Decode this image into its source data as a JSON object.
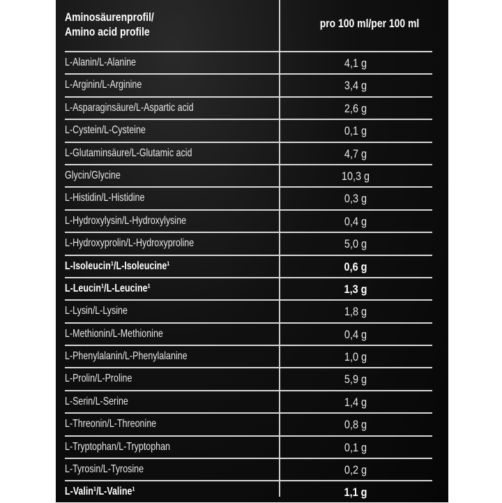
{
  "header": {
    "left_line1": "Aminosäurenprofil/",
    "left_line2": "Amino acid profile",
    "right": "pro 100 ml/per 100 ml"
  },
  "rows": [
    {
      "name": "L-Alanin/L-Alanine",
      "value": "4,1 g",
      "bold": false
    },
    {
      "name": "L-Arginin/L-Arginine",
      "value": "3,4 g",
      "bold": false
    },
    {
      "name": "L-Asparaginsäure/L-Aspartic acid",
      "value": "2,6 g",
      "bold": false
    },
    {
      "name": "L-Cystein/L-Cysteine",
      "value": "0,1 g",
      "bold": false
    },
    {
      "name": "L-Glutaminsäure/L-Glutamic acid",
      "value": "4,7 g",
      "bold": false
    },
    {
      "name": "Glycin/Glycine",
      "value": "10,3 g",
      "bold": false
    },
    {
      "name": "L-Histidin/L-Histidine",
      "value": "0,3 g",
      "bold": false
    },
    {
      "name": "L-Hydroxylysin/L-Hydroxylysine",
      "value": "0,4 g",
      "bold": false
    },
    {
      "name": "L-Hydroxyprolin/L-Hydroxyproline",
      "value": "5,0 g",
      "bold": false
    },
    {
      "name": "L-Isoleucin¹/L-Isoleucine¹",
      "value": "0,6 g",
      "bold": true
    },
    {
      "name": "L-Leucin¹/L-Leucine¹",
      "value": "1,3 g",
      "bold": true
    },
    {
      "name": "L-Lysin/L-Lysine",
      "value": "1,8 g",
      "bold": false
    },
    {
      "name": "L-Methionin/L-Methionine",
      "value": "0,4 g",
      "bold": false
    },
    {
      "name": "L-Phenylalanin/L-Phenylalanine",
      "value": "1,0 g",
      "bold": false
    },
    {
      "name": "L-Prolin/L-Proline",
      "value": "5,9 g",
      "bold": false
    },
    {
      "name": "L-Serin/L-Serine",
      "value": "1,4 g",
      "bold": false
    },
    {
      "name": "L-Threonin/L-Threonine",
      "value": "0,8 g",
      "bold": false
    },
    {
      "name": "L-Tryptophan/L-Tryptophan",
      "value": "0,1 g",
      "bold": false
    },
    {
      "name": "L-Tyrosin/L-Tyrosine",
      "value": "0,2 g",
      "bold": false
    },
    {
      "name": "L-Valin¹/L-Valine¹",
      "value": "1,1 g",
      "bold": true
    }
  ]
}
